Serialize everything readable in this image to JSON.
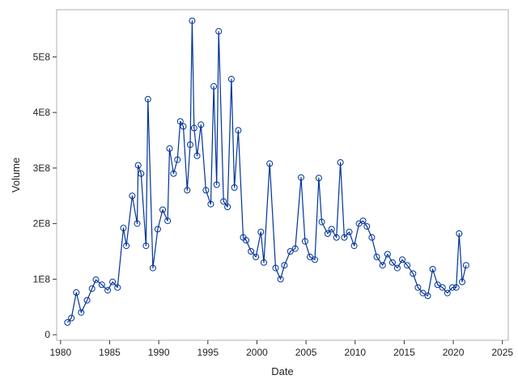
{
  "chart_data": {
    "type": "line",
    "title": "",
    "xlabel": "Date",
    "ylabel": "Volume",
    "xlim": [
      1979.6,
      2025.6
    ],
    "ylim": [
      -10000000,
      585000000
    ],
    "x_ticks": [
      1980,
      1985,
      1990,
      1995,
      2000,
      2005,
      2010,
      2015,
      2020,
      2025
    ],
    "x_tick_labels": [
      "1980",
      "1985",
      "1990",
      "1995",
      "2000",
      "2005",
      "2010",
      "2015",
      "2020",
      "2025"
    ],
    "y_ticks": [
      0,
      100000000,
      200000000,
      300000000,
      400000000,
      500000000
    ],
    "y_tick_labels": [
      "0",
      "1E8",
      "2E8",
      "3E8",
      "4E8",
      "5E8"
    ],
    "grid": false,
    "legend": "none",
    "marker": "open-circle",
    "colors": {
      "series": "#003399",
      "frame": "#b0b0b0",
      "text": "#222222"
    },
    "series": [
      {
        "x": [
          1980.7,
          1981.1,
          1981.6,
          1982.1,
          1982.7,
          1983.2,
          1983.6,
          1984.2,
          1984.8,
          1985.3,
          1985.8,
          1986.4,
          1986.7,
          1987.3,
          1987.8,
          1987.9,
          1988.2,
          1988.7,
          1988.9,
          1989.4,
          1989.9,
          1990.4,
          1990.9,
          1991.1,
          1991.5,
          1991.9,
          1992.2,
          1992.5,
          1992.9,
          1993.2,
          1993.4,
          1993.6,
          1993.9,
          1994.3,
          1994.8,
          1995.3,
          1995.6,
          1995.9,
          1996.1,
          1996.6,
          1997.0,
          1997.4,
          1997.7,
          1998.1,
          1998.6,
          1998.9,
          1999.4,
          1999.9,
          2000.4,
          2000.7,
          2001.3,
          2001.9,
          2002.4,
          2002.8,
          2003.4,
          2003.9,
          2004.5,
          2004.9,
          2005.4,
          2005.9,
          2006.3,
          2006.6,
          2007.2,
          2007.6,
          2008.1,
          2008.5,
          2008.9,
          2009.4,
          2009.9,
          2010.4,
          2010.8,
          2011.2,
          2011.7,
          2012.2,
          2012.8,
          2013.3,
          2013.8,
          2014.3,
          2014.8,
          2015.3,
          2015.9,
          2016.4,
          2016.9,
          2017.4,
          2017.9,
          2018.4,
          2018.9,
          2019.4,
          2019.9,
          2020.3,
          2020.6,
          2020.9,
          2021.3
        ],
        "y": [
          22000000,
          30000000,
          76000000,
          40000000,
          62000000,
          83000000,
          99000000,
          90000000,
          80000000,
          95000000,
          85000000,
          192000000,
          160000000,
          250000000,
          200000000,
          305000000,
          290000000,
          160000000,
          424000000,
          120000000,
          190000000,
          225000000,
          205000000,
          335000000,
          290000000,
          315000000,
          384000000,
          375000000,
          260000000,
          342000000,
          565000000,
          372000000,
          322000000,
          378000000,
          260000000,
          235000000,
          447000000,
          270000000,
          546000000,
          240000000,
          230000000,
          460000000,
          265000000,
          368000000,
          175000000,
          170000000,
          150000000,
          140000000,
          185000000,
          130000000,
          308000000,
          120000000,
          100000000,
          125000000,
          150000000,
          155000000,
          283000000,
          168000000,
          140000000,
          135000000,
          282000000,
          203000000,
          182000000,
          190000000,
          175000000,
          310000000,
          175000000,
          185000000,
          160000000,
          200000000,
          205000000,
          195000000,
          175000000,
          140000000,
          125000000,
          145000000,
          130000000,
          120000000,
          135000000,
          125000000,
          110000000,
          85000000,
          75000000,
          70000000,
          118000000,
          90000000,
          85000000,
          75000000,
          85000000,
          85000000,
          182000000,
          95000000,
          125000000
        ]
      }
    ]
  }
}
